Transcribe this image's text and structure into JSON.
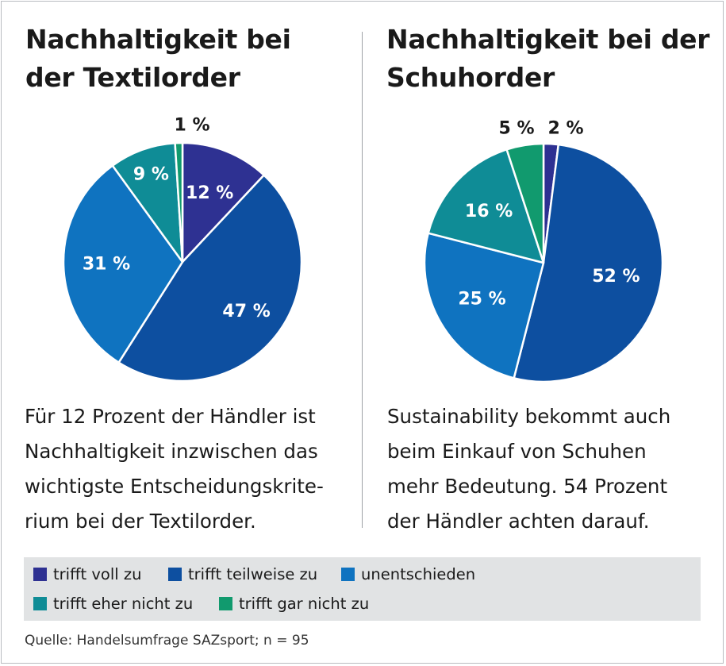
{
  "chart_data": [
    {
      "type": "pie",
      "title": [
        "Nachhaltigkeit bei",
        "der Textilorder"
      ],
      "categories": [
        "trifft voll zu",
        "trifft teilweise zu",
        "unentschieden",
        "trifft eher nicht zu",
        "trifft gar nicht zu"
      ],
      "values": [
        12,
        47,
        31,
        9,
        1
      ],
      "labels": [
        "12 %",
        "47 %",
        "31 %",
        "9 %",
        "1 %"
      ],
      "caption": [
        "Für 12 Prozent der Händler ist",
        "Nachhaltigkeit inzwischen das",
        "wichtigste Entscheidungskrite-",
        "rium bei der Textilorder."
      ]
    },
    {
      "type": "pie",
      "title": [
        "Nachhaltigkeit bei der",
        "Schuhorder"
      ],
      "categories": [
        "trifft voll zu",
        "trifft teilweise zu",
        "unentschieden",
        "trifft eher nicht zu",
        "trifft gar nicht zu"
      ],
      "values": [
        2,
        52,
        25,
        16,
        5
      ],
      "labels": [
        "2 %",
        "52 %",
        "25 %",
        "16 %",
        "5 %"
      ],
      "caption": [
        "Sustainability bekommt auch",
        "beim Einkauf von Schuhen",
        "mehr Bedeutung. 54 Prozent",
        "der Händler achten darauf."
      ]
    }
  ],
  "legend": [
    {
      "label": "trifft voll zu",
      "color": "#2e3192"
    },
    {
      "label": "trifft teilweise zu",
      "color": "#0d4fa0"
    },
    {
      "label": "unentschieden",
      "color": "#0f73c0"
    },
    {
      "label": "trifft eher nicht zu",
      "color": "#0f8c96"
    },
    {
      "label": "trifft gar nicht zu",
      "color": "#119a6e"
    }
  ],
  "source": "Quelle: Handelsumfrage SAZsport; n = 95"
}
